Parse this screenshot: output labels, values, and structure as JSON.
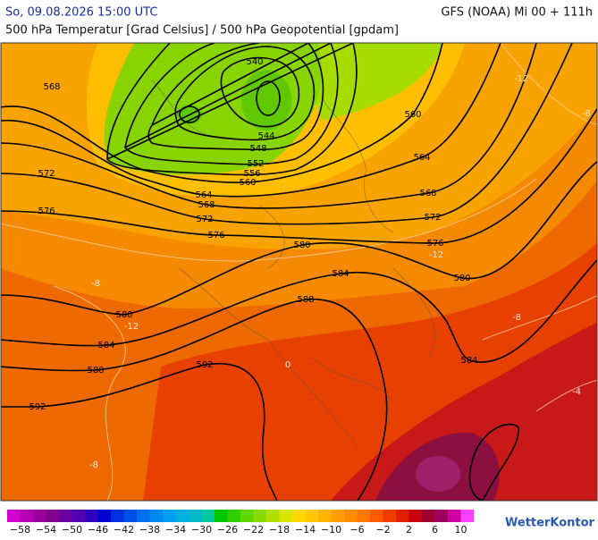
{
  "header": {
    "datetime": "So, 09.08.2026 15:00 UTC",
    "model": "GFS (NOAA) Mi 00 + 111h",
    "subtitle": "500 hPa Temperatur [Grad Celsius] / 500 hPa Geopotential [gpdam]"
  },
  "map": {
    "geopotential_labels": [
      "568",
      "540",
      "544",
      "548",
      "552",
      "556",
      "560",
      "564",
      "568",
      "572",
      "576",
      "572",
      "576",
      "580",
      "584",
      "588",
      "580",
      "584",
      "588",
      "592",
      "592",
      "560",
      "564",
      "568",
      "572",
      "576",
      "580",
      "584"
    ],
    "temperature_labels": [
      "-8",
      "-12",
      "-8",
      "-4",
      "-12",
      "-8",
      "-12",
      "-8",
      "0"
    ]
  },
  "colorbar": {
    "labels": [
      "−58",
      "−54",
      "−50",
      "−46",
      "−42",
      "−38",
      "−34",
      "−30",
      "−26",
      "−22",
      "−18",
      "−14",
      "−10",
      "−6",
      "−2",
      "2",
      "6",
      "10"
    ],
    "colors": [
      "#d000d0",
      "#b400b4",
      "#9a009a",
      "#80008c",
      "#6a00a0",
      "#5000b0",
      "#3000c0",
      "#0000d0",
      "#0030e0",
      "#0050e8",
      "#0070f0",
      "#0088f0",
      "#00a0f0",
      "#00b0e0",
      "#00b8c8",
      "#00c8a0",
      "#00c800",
      "#30d000",
      "#60d800",
      "#88dc00",
      "#b0e000",
      "#d8e400",
      "#ffd800",
      "#ffc800",
      "#ffb400",
      "#ffa000",
      "#ff8c00",
      "#ff7800",
      "#ff5a00",
      "#f03c00",
      "#e01e00",
      "#c80010",
      "#a00030",
      "#a00060",
      "#d000a0",
      "#ff40ff"
    ]
  },
  "logo": "WetterKontor"
}
